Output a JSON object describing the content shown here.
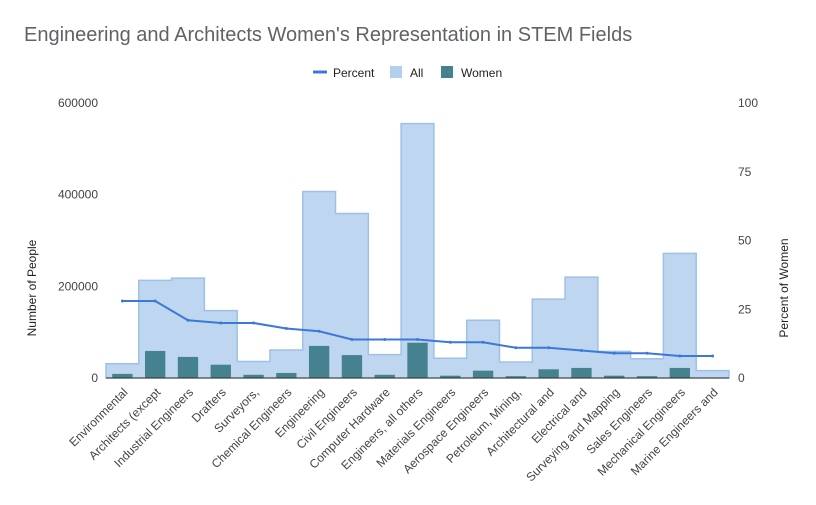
{
  "chart_data": {
    "type": "bar",
    "title": "Engineering and Architects Women's Representation in STEM Fields",
    "categories": [
      "Environmental",
      "Architects (except",
      "Industrial Engineers",
      "Drafters",
      "Surveyors,",
      "Chemical Engineers",
      "Engineering",
      "Civil Engineers",
      "Computer Hardware",
      "Engineers, all others",
      "Materials Engineers",
      "Aerospace Engineers",
      "Petroleum, Mining,",
      "Architectural and",
      "Electrical and",
      "Surveying and Mapping",
      "Sales Engineers",
      "Mechanical Engineers",
      "Marine Engineers and"
    ],
    "series": [
      {
        "name": "Percent",
        "axis": "right",
        "render": "line",
        "color": "#3c78d8",
        "values": [
          28,
          28,
          21,
          20,
          20,
          18,
          17,
          14,
          14,
          14,
          13,
          13,
          11,
          11,
          10,
          9,
          9,
          8,
          8
        ]
      },
      {
        "name": "All",
        "axis": "left",
        "render": "stepped-area",
        "color": "#b4cfee",
        "values": [
          31000,
          213000,
          218000,
          147000,
          36000,
          61000,
          407000,
          359000,
          51000,
          555000,
          43000,
          126000,
          35000,
          172000,
          220000,
          58000,
          42000,
          272000,
          16000
        ]
      },
      {
        "name": "Women",
        "axis": "left",
        "render": "bar",
        "color": "#45818e",
        "values": [
          9000,
          59000,
          46000,
          29000,
          7000,
          11000,
          70000,
          50000,
          7000,
          77000,
          5000,
          16000,
          4000,
          19000,
          22000,
          5000,
          4000,
          22000,
          1000
        ]
      }
    ],
    "left_axis": {
      "label": "Number of People",
      "ylim": [
        0,
        600000
      ],
      "ticks": [
        "0",
        "200000",
        "400000",
        "600000"
      ]
    },
    "right_axis": {
      "label": "Percent of Women",
      "ylim": [
        0,
        100
      ],
      "ticks": [
        "0",
        "25",
        "50",
        "75",
        "100"
      ]
    },
    "legend": {
      "position": "top",
      "items": [
        "Percent",
        "All",
        "Women"
      ]
    },
    "grid": false
  }
}
